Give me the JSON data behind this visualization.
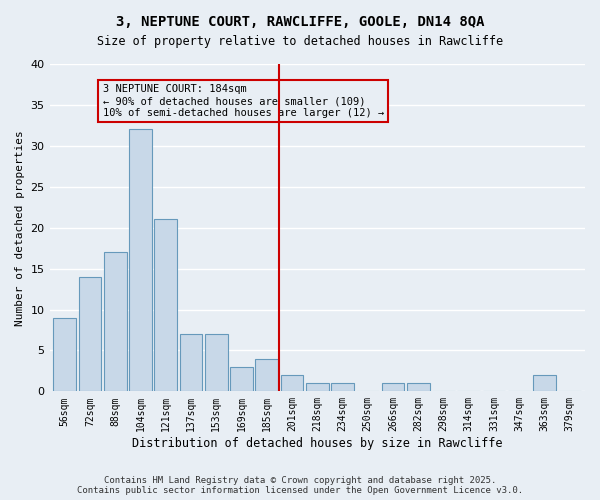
{
  "title": "3, NEPTUNE COURT, RAWCLIFFE, GOOLE, DN14 8QA",
  "subtitle": "Size of property relative to detached houses in Rawcliffe",
  "xlabel": "Distribution of detached houses by size in Rawcliffe",
  "ylabel": "Number of detached properties",
  "footer": "Contains HM Land Registry data © Crown copyright and database right 2025.\nContains public sector information licensed under the Open Government Licence v3.0.",
  "categories": [
    "56sqm",
    "72sqm",
    "88sqm",
    "104sqm",
    "121sqm",
    "137sqm",
    "153sqm",
    "169sqm",
    "185sqm",
    "201sqm",
    "218sqm",
    "234sqm",
    "250sqm",
    "266sqm",
    "282sqm",
    "298sqm",
    "314sqm",
    "331sqm",
    "347sqm",
    "363sqm",
    "379sqm"
  ],
  "values": [
    9,
    14,
    17,
    32,
    21,
    7,
    7,
    3,
    4,
    2,
    1,
    1,
    0,
    1,
    1,
    0,
    0,
    0,
    0,
    2,
    0
  ],
  "bar_color": "#c8d8e8",
  "bar_edge_color": "#6699bb",
  "background_color": "#e8eef4",
  "grid_color": "#ffffff",
  "vline_x": 8.5,
  "vline_color": "#cc0000",
  "annotation_text": "3 NEPTUNE COURT: 184sqm\n← 90% of detached houses are smaller (109)\n10% of semi-detached houses are larger (12) →",
  "annotation_box_color": "#cc0000",
  "ylim": [
    0,
    40
  ],
  "yticks": [
    0,
    5,
    10,
    15,
    20,
    25,
    30,
    35,
    40
  ]
}
